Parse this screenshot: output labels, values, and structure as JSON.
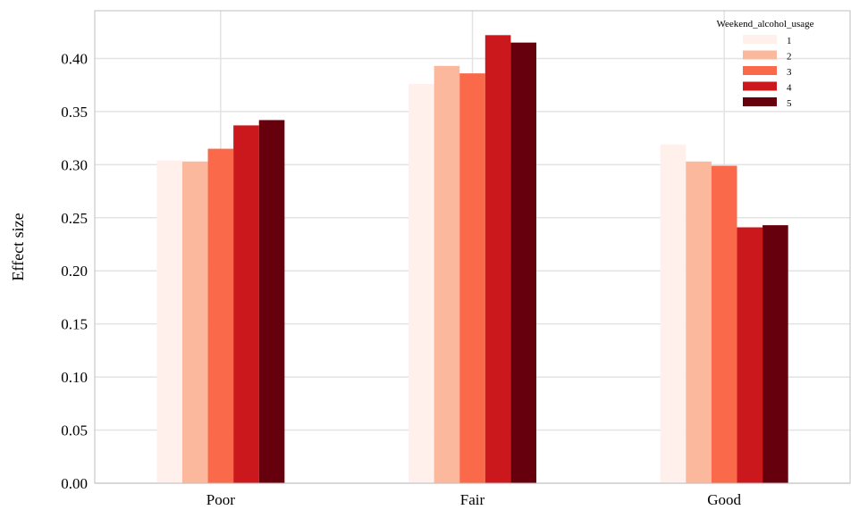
{
  "chart_data": {
    "type": "bar",
    "categories": [
      "Poor",
      "Fair",
      "Good"
    ],
    "series": [
      {
        "name": "1",
        "color": "#fff0ec",
        "values": [
          0.304,
          0.376,
          0.319
        ]
      },
      {
        "name": "2",
        "color": "#fcb89d",
        "values": [
          0.303,
          0.393,
          0.303
        ]
      },
      {
        "name": "3",
        "color": "#fa6a4a",
        "values": [
          0.315,
          0.386,
          0.299
        ]
      },
      {
        "name": "4",
        "color": "#cb181d",
        "values": [
          0.337,
          0.422,
          0.241
        ]
      },
      {
        "name": "5",
        "color": "#67000d",
        "values": [
          0.342,
          0.415,
          0.243
        ]
      }
    ],
    "title": "",
    "xlabel": "",
    "ylabel": "Effect size",
    "ylim": [
      0.0,
      0.445
    ],
    "yticks": [
      "0.00",
      "0.05",
      "0.10",
      "0.15",
      "0.20",
      "0.25",
      "0.30",
      "0.35",
      "0.40"
    ],
    "grid": true,
    "legend": {
      "title": "Weekend_alcohol_usage",
      "placement": "top-right"
    }
  }
}
